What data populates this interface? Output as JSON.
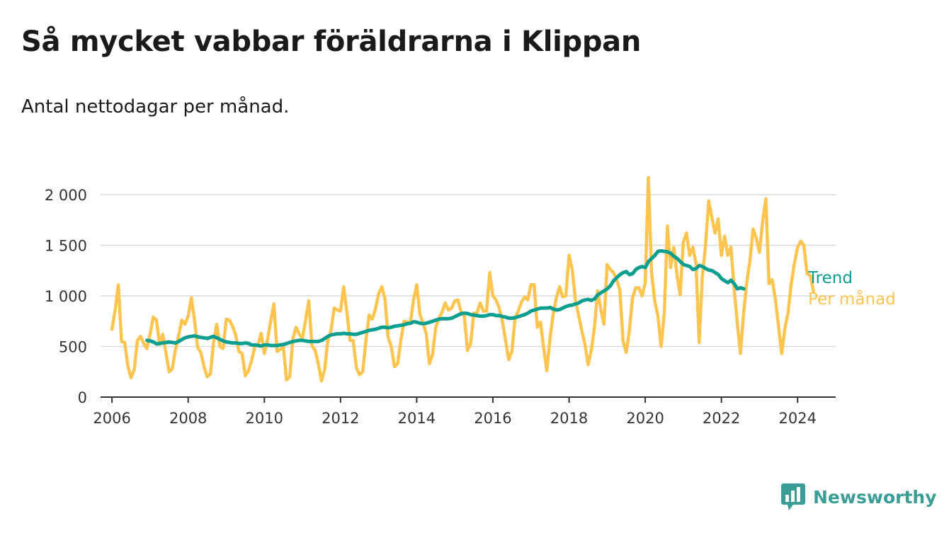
{
  "title": "Så mycket vabbar föräldrarna i Klippan",
  "subtitle": "Antal nettodagar per månad.",
  "brand": {
    "name": "Newsworthy",
    "icon": "newsworthy-logo-icon",
    "color": "#3a9e97"
  },
  "chart_data": {
    "type": "line",
    "title": "Så mycket vabbar föräldrarna i Klippan",
    "subtitle": "Antal nettodagar per månad.",
    "xlabel": "",
    "ylabel": "",
    "xlim": [
      2005.7,
      2025.0
    ],
    "ylim": [
      0,
      2000
    ],
    "grid": "horizontal",
    "legend": "inline-right",
    "x_ticks": [
      {
        "value": 2006,
        "label": "2006"
      },
      {
        "value": 2008,
        "label": "2008"
      },
      {
        "value": 2010,
        "label": "2010"
      },
      {
        "value": 2012,
        "label": "2012"
      },
      {
        "value": 2014,
        "label": "2014"
      },
      {
        "value": 2016,
        "label": "2016"
      },
      {
        "value": 2018,
        "label": "2018"
      },
      {
        "value": 2020,
        "label": "2020"
      },
      {
        "value": 2022,
        "label": "2022"
      },
      {
        "value": 2024,
        "label": "2024"
      }
    ],
    "y_ticks": [
      {
        "value": 0,
        "label": "0"
      },
      {
        "value": 500,
        "label": "500"
      },
      {
        "value": 1000,
        "label": "1 000"
      },
      {
        "value": 1500,
        "label": "1 500"
      },
      {
        "value": 2000,
        "label": "2 000"
      }
    ],
    "series": [
      {
        "name": "Per månad",
        "color": "#fdc44f",
        "start": 2006.0,
        "step": 0.08333,
        "values": [
          670,
          860,
          1110,
          550,
          540,
          310,
          190,
          270,
          560,
          600,
          530,
          480,
          620,
          790,
          760,
          520,
          620,
          440,
          250,
          280,
          470,
          610,
          760,
          720,
          800,
          980,
          760,
          490,
          440,
          300,
          200,
          230,
          540,
          720,
          500,
          480,
          770,
          760,
          700,
          610,
          450,
          430,
          210,
          260,
          360,
          500,
          520,
          630,
          430,
          560,
          750,
          920,
          450,
          470,
          500,
          170,
          200,
          580,
          690,
          620,
          580,
          760,
          950,
          510,
          460,
          330,
          160,
          270,
          560,
          660,
          880,
          860,
          850,
          1090,
          840,
          560,
          560,
          290,
          220,
          250,
          560,
          810,
          770,
          870,
          1020,
          1090,
          970,
          590,
          500,
          300,
          330,
          560,
          750,
          740,
          730,
          960,
          1110,
          820,
          730,
          630,
          330,
          420,
          690,
          780,
          840,
          930,
          860,
          880,
          950,
          960,
          840,
          800,
          460,
          530,
          830,
          830,
          930,
          850,
          850,
          1230,
          1000,
          960,
          880,
          750,
          560,
          370,
          450,
          780,
          850,
          940,
          990,
          960,
          1110,
          1110,
          690,
          740,
          490,
          260,
          580,
          820,
          980,
          1090,
          990,
          1000,
          1400,
          1260,
          960,
          810,
          660,
          520,
          320,
          460,
          690,
          1050,
          870,
          720,
          1310,
          1260,
          1230,
          1160,
          1060,
          560,
          440,
          650,
          980,
          1080,
          1080,
          1000,
          1130,
          2170,
          1230,
          950,
          800,
          500,
          820,
          1690,
          1280,
          1480,
          1210,
          1010,
          1530,
          1620,
          1400,
          1480,
          1320,
          540,
          1190,
          1500,
          1940,
          1770,
          1620,
          1760,
          1400,
          1590,
          1400,
          1480,
          1080,
          740,
          430,
          830,
          1140,
          1350,
          1660,
          1570,
          1430,
          1740,
          1960,
          1120,
          1160,
          970,
          700,
          430,
          680,
          830,
          1120,
          1320,
          1480,
          1540,
          1500,
          1220,
          1200,
          1050
        ]
      },
      {
        "name": "Trend",
        "color": "#0c9e8e",
        "start": 2006.92,
        "step": 0.08333,
        "values": [
          560,
          555,
          545,
          525,
          530,
          535,
          540,
          545,
          540,
          535,
          550,
          570,
          585,
          595,
          600,
          605,
          595,
          590,
          585,
          580,
          590,
          600,
          585,
          570,
          555,
          545,
          540,
          535,
          535,
          530,
          530,
          535,
          530,
          515,
          515,
          510,
          505,
          515,
          515,
          510,
          510,
          510,
          515,
          520,
          530,
          540,
          550,
          555,
          560,
          560,
          555,
          550,
          550,
          550,
          550,
          560,
          580,
          600,
          615,
          620,
          625,
          625,
          630,
          625,
          625,
          620,
          620,
          630,
          640,
          650,
          660,
          665,
          670,
          680,
          690,
          690,
          685,
          690,
          700,
          705,
          710,
          715,
          725,
          730,
          745,
          740,
          730,
          725,
          730,
          740,
          750,
          760,
          770,
          775,
          775,
          775,
          780,
          795,
          810,
          825,
          830,
          825,
          815,
          810,
          805,
          800,
          800,
          805,
          815,
          815,
          805,
          805,
          795,
          790,
          780,
          780,
          785,
          795,
          805,
          815,
          830,
          850,
          860,
          870,
          880,
          880,
          880,
          885,
          870,
          860,
          865,
          880,
          895,
          905,
          910,
          920,
          930,
          950,
          960,
          965,
          955,
          970,
          1010,
          1030,
          1050,
          1070,
          1100,
          1150,
          1180,
          1210,
          1230,
          1240,
          1210,
          1220,
          1260,
          1280,
          1290,
          1280,
          1340,
          1370,
          1400,
          1440,
          1445,
          1440,
          1435,
          1420,
          1390,
          1370,
          1340,
          1310,
          1300,
          1290,
          1260,
          1270,
          1300,
          1290,
          1270,
          1255,
          1250,
          1230,
          1210,
          1170,
          1150,
          1130,
          1155,
          1120,
          1070,
          1080,
          1070
        ]
      }
    ]
  }
}
